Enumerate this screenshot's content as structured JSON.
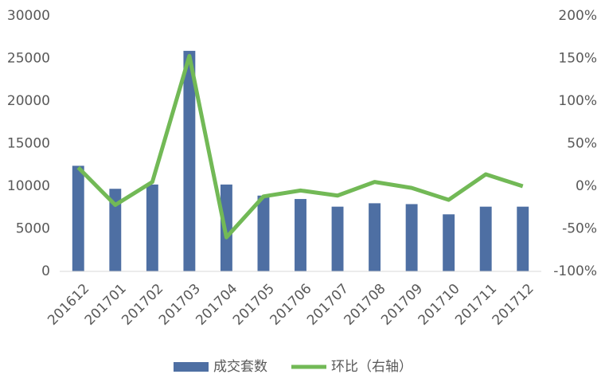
{
  "chart_data": {
    "type": "combo",
    "categories": [
      "201612",
      "201701",
      "201702",
      "201703",
      "201704",
      "201705",
      "201706",
      "201707",
      "201708",
      "201709",
      "201710",
      "201711",
      "201712"
    ],
    "series": [
      {
        "name": "成交套数",
        "type": "bar",
        "color": "#4e6fa3",
        "axis": "y",
        "values": [
          12400,
          9700,
          10200,
          25900,
          10200,
          8900,
          8500,
          7600,
          8000,
          7900,
          6700,
          7600,
          7600
        ]
      },
      {
        "name": "环比（右轴）",
        "type": "line",
        "color": "#72b956",
        "axis": "y2",
        "values": [
          22,
          -22,
          5,
          153,
          -60,
          -12,
          -5,
          -11,
          5,
          -2,
          -16,
          14,
          0
        ]
      }
    ],
    "ylim": [
      0,
      30000
    ],
    "yticks": [
      0,
      5000,
      10000,
      15000,
      20000,
      25000,
      30000
    ],
    "y2lim": [
      -100,
      200
    ],
    "y2ticks": [
      {
        "value": -100,
        "label": "-100%"
      },
      {
        "value": -50,
        "label": "-50%"
      },
      {
        "value": 0,
        "label": "0%"
      },
      {
        "value": 50,
        "label": "50%"
      },
      {
        "value": 100,
        "label": "100%"
      },
      {
        "value": 150,
        "label": "150%"
      },
      {
        "value": 200,
        "label": "200%"
      }
    ],
    "grid": false,
    "legend": "bottom"
  }
}
